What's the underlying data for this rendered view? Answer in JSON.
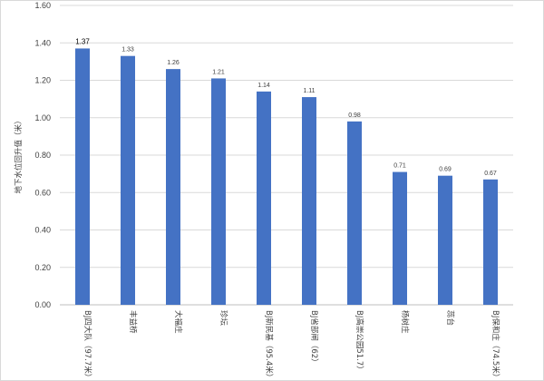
{
  "chart_data": {
    "type": "bar",
    "title": "",
    "xlabel": "",
    "ylabel": "地下水位回升值（米）",
    "ylim": [
      0,
      1.6
    ],
    "yticks": [
      "0.00",
      "0.20",
      "0.40",
      "0.60",
      "0.80",
      "1.00",
      "1.20",
      "1.40",
      "1.60"
    ],
    "grid": true,
    "legend": "none",
    "bar_color": "#4472c4",
    "categories": [
      "BJ四大队（97.7米）",
      "丰益桥",
      "大福庄",
      "珍坛",
      "BJ新民基（95.4米）",
      "BJ省部闸（62）",
      "BJ高崇公园51.7）",
      "杨树庄",
      "蕊台",
      "BJ保和庄（74.5米）"
    ],
    "values": [
      1.37,
      1.33,
      1.26,
      1.21,
      1.14,
      1.11,
      0.98,
      0.71,
      0.69,
      0.67
    ],
    "data_labels": [
      "1.37",
      "1.33",
      "1.26",
      "1.21",
      "1.14",
      "1.11",
      "0.98",
      "0.71",
      "0.69",
      "0.67"
    ]
  }
}
